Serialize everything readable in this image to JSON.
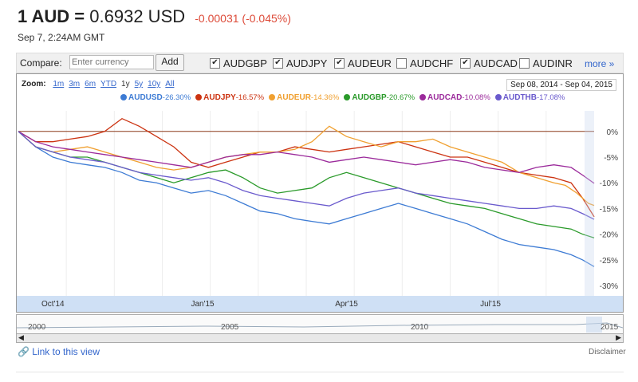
{
  "header": {
    "base": "1 AUD =",
    "rate": "0.6932 USD",
    "change": "-0.00031 (-0.045%)",
    "date": "Sep 7, 2:24AM GMT"
  },
  "compare": {
    "label": "Compare:",
    "placeholder": "Enter currency",
    "add": "Add",
    "checks": [
      {
        "label": "AUDGBP",
        "checked": true
      },
      {
        "label": "AUDJPY",
        "checked": true
      },
      {
        "label": "AUDEUR",
        "checked": true
      },
      {
        "label": "AUDCHF",
        "checked": false
      },
      {
        "label": "AUDCAD",
        "checked": true
      },
      {
        "label": "AUDINR",
        "checked": false
      }
    ],
    "more": "more »"
  },
  "zoom": {
    "label": "Zoom:",
    "options": [
      "1m",
      "3m",
      "6m",
      "YTD",
      "1y",
      "5y",
      "10y",
      "All"
    ],
    "selected": "1y",
    "range": "Sep 08, 2014  -  Sep 04, 2015"
  },
  "navigator": {
    "years": [
      "2000",
      "2005",
      "2010",
      "2015"
    ]
  },
  "footer": {
    "link": "Link to this view",
    "disclaimer": "Disclaimer"
  },
  "chart_data": {
    "type": "line",
    "x_ticks": [
      "Oct'14",
      "Jan'15",
      "Apr'15",
      "Jul'15"
    ],
    "y_ticks": [
      "0%",
      "-5%",
      "-10%",
      "-15%",
      "-20%",
      "-25%",
      "-30%"
    ],
    "ylim": [
      -32,
      4
    ],
    "xlim": [
      0,
      100
    ],
    "series": [
      {
        "name": "AUDUSD",
        "change": "-26.30%",
        "color": "#3d7bd4",
        "points": [
          [
            0,
            0
          ],
          [
            3,
            -3
          ],
          [
            6,
            -5
          ],
          [
            9,
            -6
          ],
          [
            12,
            -6.5
          ],
          [
            15,
            -7
          ],
          [
            18,
            -8
          ],
          [
            21,
            -9.5
          ],
          [
            24,
            -10
          ],
          [
            27,
            -11
          ],
          [
            30,
            -12
          ],
          [
            33,
            -11.5
          ],
          [
            36,
            -12.5
          ],
          [
            39,
            -14
          ],
          [
            42,
            -15.5
          ],
          [
            45,
            -16
          ],
          [
            48,
            -17
          ],
          [
            51,
            -17.5
          ],
          [
            54,
            -18
          ],
          [
            57,
            -17
          ],
          [
            60,
            -16
          ],
          [
            63,
            -15
          ],
          [
            66,
            -14
          ],
          [
            69,
            -15
          ],
          [
            72,
            -16
          ],
          [
            75,
            -17
          ],
          [
            78,
            -18
          ],
          [
            81,
            -19.5
          ],
          [
            84,
            -21
          ],
          [
            87,
            -22
          ],
          [
            90,
            -22.5
          ],
          [
            93,
            -23
          ],
          [
            96,
            -24
          ],
          [
            98,
            -25
          ],
          [
            100,
            -26.3
          ]
        ]
      },
      {
        "name": "AUDJPY",
        "change": "-16.57%",
        "color": "#cc3311",
        "points": [
          [
            0,
            0
          ],
          [
            3,
            -2
          ],
          [
            6,
            -2
          ],
          [
            9,
            -1.5
          ],
          [
            12,
            -1
          ],
          [
            15,
            0
          ],
          [
            18,
            2.5
          ],
          [
            21,
            1
          ],
          [
            24,
            -1
          ],
          [
            27,
            -3
          ],
          [
            30,
            -6
          ],
          [
            33,
            -7
          ],
          [
            36,
            -6
          ],
          [
            39,
            -5
          ],
          [
            42,
            -4
          ],
          [
            45,
            -4
          ],
          [
            48,
            -3
          ],
          [
            51,
            -3.5
          ],
          [
            54,
            -4
          ],
          [
            57,
            -3.5
          ],
          [
            60,
            -3
          ],
          [
            63,
            -2.5
          ],
          [
            66,
            -2
          ],
          [
            69,
            -3
          ],
          [
            72,
            -4
          ],
          [
            75,
            -5
          ],
          [
            78,
            -5
          ],
          [
            81,
            -6
          ],
          [
            84,
            -7
          ],
          [
            87,
            -8
          ],
          [
            90,
            -8.5
          ],
          [
            93,
            -9
          ],
          [
            96,
            -10
          ],
          [
            98,
            -13
          ],
          [
            100,
            -16.6
          ]
        ]
      },
      {
        "name": "AUDEUR",
        "change": "-14.36%",
        "color": "#f0a030",
        "points": [
          [
            0,
            0
          ],
          [
            3,
            -3
          ],
          [
            6,
            -4
          ],
          [
            9,
            -3.5
          ],
          [
            12,
            -3
          ],
          [
            15,
            -4
          ],
          [
            18,
            -5
          ],
          [
            21,
            -6
          ],
          [
            24,
            -7
          ],
          [
            27,
            -7.5
          ],
          [
            30,
            -7
          ],
          [
            33,
            -6
          ],
          [
            36,
            -5
          ],
          [
            39,
            -4.5
          ],
          [
            42,
            -4
          ],
          [
            45,
            -4
          ],
          [
            48,
            -3.5
          ],
          [
            51,
            -2
          ],
          [
            54,
            1
          ],
          [
            57,
            -1
          ],
          [
            60,
            -2
          ],
          [
            63,
            -3
          ],
          [
            66,
            -2
          ],
          [
            69,
            -2
          ],
          [
            72,
            -1.5
          ],
          [
            75,
            -3
          ],
          [
            78,
            -4
          ],
          [
            81,
            -5
          ],
          [
            84,
            -6
          ],
          [
            87,
            -8
          ],
          [
            90,
            -9
          ],
          [
            93,
            -10
          ],
          [
            95,
            -10.5
          ],
          [
            97,
            -12
          ],
          [
            99,
            -14
          ],
          [
            100,
            -14.4
          ]
        ]
      },
      {
        "name": "AUDGBP",
        "change": "-20.67%",
        "color": "#2a9a2a",
        "points": [
          [
            0,
            0
          ],
          [
            3,
            -3
          ],
          [
            6,
            -4
          ],
          [
            9,
            -5
          ],
          [
            12,
            -5
          ],
          [
            15,
            -6
          ],
          [
            18,
            -7
          ],
          [
            21,
            -8
          ],
          [
            24,
            -9
          ],
          [
            27,
            -10
          ],
          [
            30,
            -9
          ],
          [
            33,
            -8
          ],
          [
            36,
            -7.5
          ],
          [
            39,
            -9
          ],
          [
            42,
            -11
          ],
          [
            45,
            -12
          ],
          [
            48,
            -11.5
          ],
          [
            51,
            -11
          ],
          [
            54,
            -9
          ],
          [
            57,
            -8
          ],
          [
            60,
            -9
          ],
          [
            63,
            -10
          ],
          [
            66,
            -11
          ],
          [
            69,
            -12
          ],
          [
            72,
            -13
          ],
          [
            75,
            -14
          ],
          [
            78,
            -14.5
          ],
          [
            81,
            -15
          ],
          [
            84,
            -16
          ],
          [
            87,
            -17
          ],
          [
            90,
            -18
          ],
          [
            93,
            -18.5
          ],
          [
            96,
            -19
          ],
          [
            98,
            -20
          ],
          [
            100,
            -20.7
          ]
        ]
      },
      {
        "name": "AUDCAD",
        "change": "-10.08%",
        "color": "#9b2a9b",
        "points": [
          [
            0,
            0
          ],
          [
            3,
            -2
          ],
          [
            6,
            -3
          ],
          [
            9,
            -3.5
          ],
          [
            12,
            -4
          ],
          [
            15,
            -4.5
          ],
          [
            18,
            -5
          ],
          [
            21,
            -5.5
          ],
          [
            24,
            -6
          ],
          [
            27,
            -6.5
          ],
          [
            30,
            -7
          ],
          [
            33,
            -6
          ],
          [
            36,
            -5
          ],
          [
            39,
            -4.5
          ],
          [
            42,
            -4.5
          ],
          [
            45,
            -4
          ],
          [
            48,
            -4.5
          ],
          [
            51,
            -5
          ],
          [
            54,
            -6
          ],
          [
            57,
            -5.5
          ],
          [
            60,
            -5
          ],
          [
            63,
            -5.5
          ],
          [
            66,
            -6
          ],
          [
            69,
            -6.5
          ],
          [
            72,
            -6
          ],
          [
            75,
            -5.5
          ],
          [
            78,
            -6
          ],
          [
            81,
            -7
          ],
          [
            84,
            -7.5
          ],
          [
            87,
            -8
          ],
          [
            90,
            -7
          ],
          [
            93,
            -6.5
          ],
          [
            96,
            -7
          ],
          [
            98,
            -8.5
          ],
          [
            100,
            -10.1
          ]
        ]
      },
      {
        "name": "AUDTHB",
        "change": "-17.08%",
        "color": "#6a5acd",
        "points": [
          [
            0,
            0
          ],
          [
            3,
            -3
          ],
          [
            6,
            -4
          ],
          [
            9,
            -5
          ],
          [
            12,
            -5.5
          ],
          [
            15,
            -6
          ],
          [
            18,
            -7
          ],
          [
            21,
            -8
          ],
          [
            24,
            -8.5
          ],
          [
            27,
            -9
          ],
          [
            30,
            -9.5
          ],
          [
            33,
            -9
          ],
          [
            36,
            -10
          ],
          [
            39,
            -11.5
          ],
          [
            42,
            -12.5
          ],
          [
            45,
            -13
          ],
          [
            48,
            -13.5
          ],
          [
            51,
            -14
          ],
          [
            54,
            -14.5
          ],
          [
            57,
            -13
          ],
          [
            60,
            -12
          ],
          [
            63,
            -11.5
          ],
          [
            66,
            -11
          ],
          [
            69,
            -12
          ],
          [
            72,
            -12.5
          ],
          [
            75,
            -13
          ],
          [
            78,
            -13.5
          ],
          [
            81,
            -14
          ],
          [
            84,
            -14.5
          ],
          [
            87,
            -15
          ],
          [
            90,
            -15
          ],
          [
            93,
            -14.5
          ],
          [
            96,
            -15
          ],
          [
            98,
            -16
          ],
          [
            100,
            -17.1
          ]
        ]
      }
    ]
  }
}
